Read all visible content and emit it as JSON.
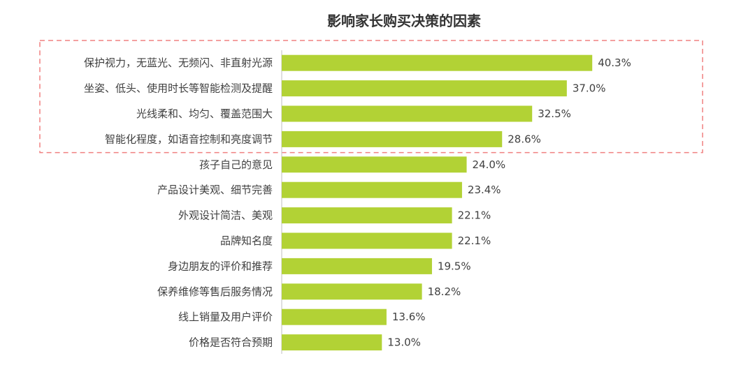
{
  "chart_data": {
    "type": "bar",
    "orientation": "horizontal",
    "title": "影响家长购买决策的因素",
    "xlabel": "",
    "ylabel": "",
    "xlim": [
      0,
      45
    ],
    "grid": false,
    "legend": "none",
    "bar_color": "#b2d235",
    "highlight_box_color": "#f08080",
    "highlighted_count": 4,
    "categories": [
      "保护视力，无蓝光、无频闪、非直射光源",
      "坐姿、低头、使用时长等智能检测及提醒",
      "光线柔和、均匀、覆盖范围大",
      "智能化程度，如语音控制和亮度调节",
      "孩子自己的意见",
      "产品设计美观、细节完善",
      "外观设计简洁、美观",
      "品牌知名度",
      "身边朋友的评价和推荐",
      "保养维修等售后服务情况",
      "线上销量及用户评价",
      "价格是否符合预期"
    ],
    "values": [
      40.3,
      37.0,
      32.5,
      28.6,
      24.0,
      23.4,
      22.1,
      22.1,
      19.5,
      18.2,
      13.6,
      13.0
    ],
    "value_labels": [
      "40.3%",
      "37.0%",
      "32.5%",
      "28.6%",
      "24.0%",
      "23.4%",
      "22.1%",
      "22.1%",
      "19.5%",
      "18.2%",
      "13.6%",
      "13.0%"
    ]
  }
}
